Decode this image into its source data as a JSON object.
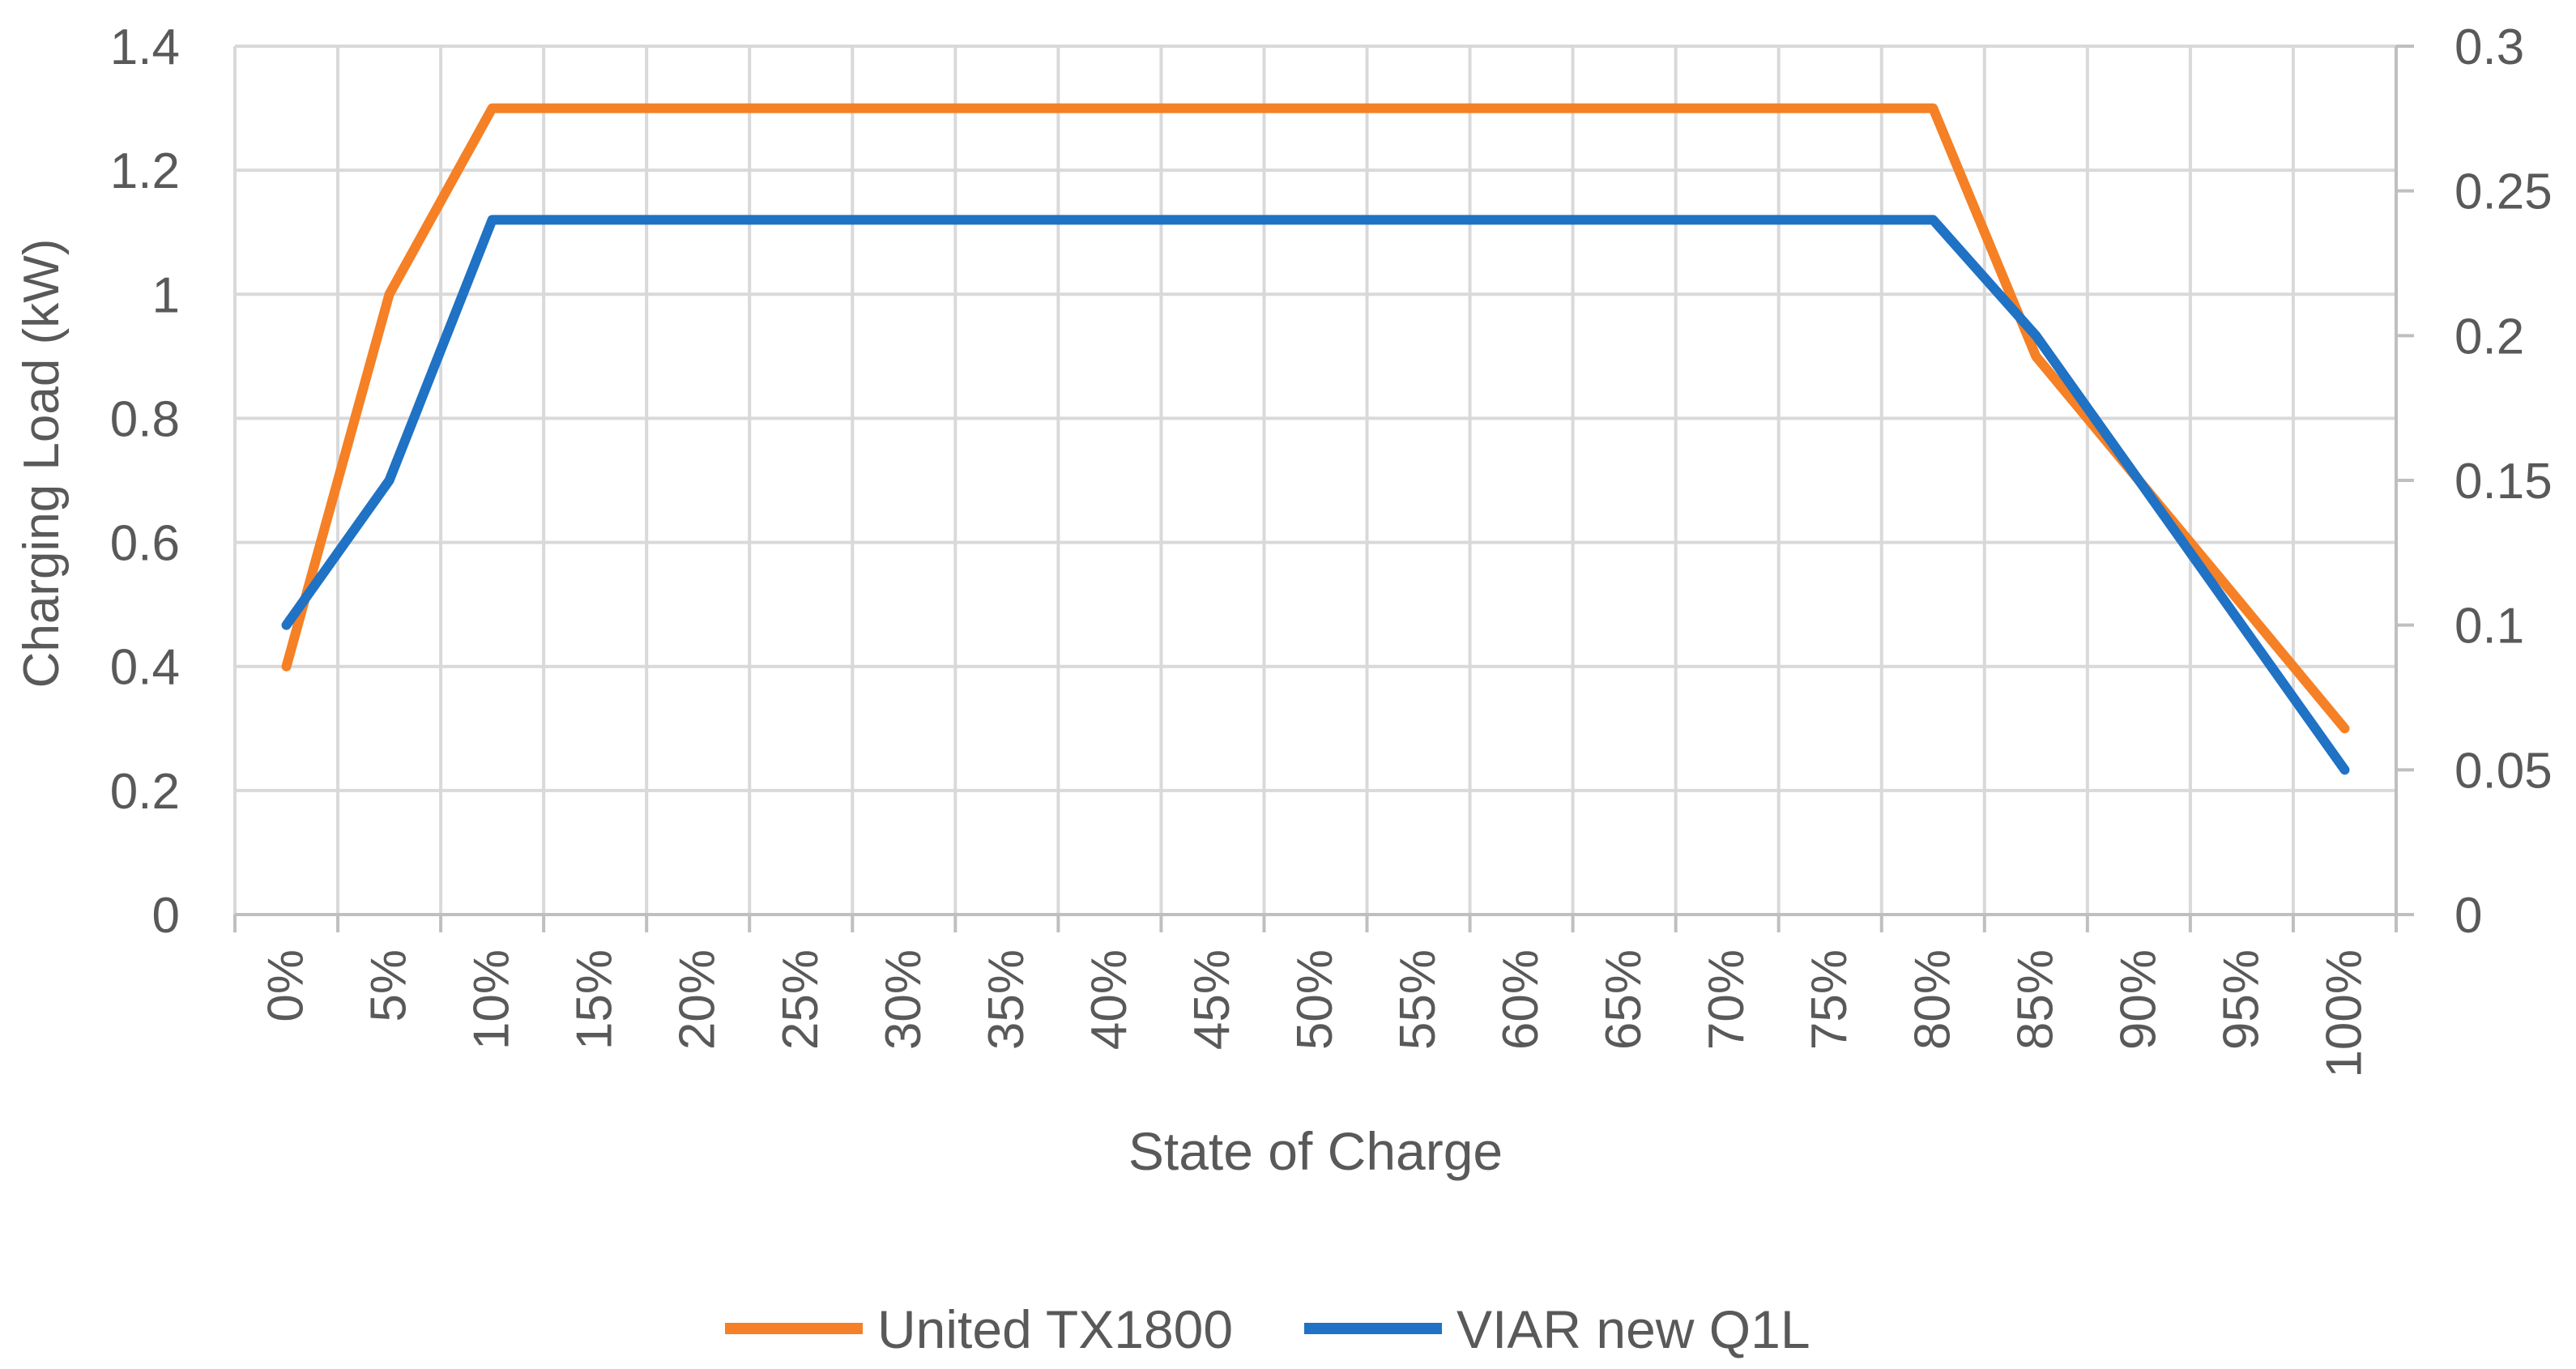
{
  "chart_data": {
    "type": "line",
    "title": "",
    "xlabel": "State of Charge",
    "ylabel": "Charging Load (kW)",
    "y2label": "",
    "categories": [
      "0%",
      "5%",
      "10%",
      "15%",
      "20%",
      "25%",
      "30%",
      "35%",
      "40%",
      "45%",
      "50%",
      "55%",
      "60%",
      "65%",
      "70%",
      "75%",
      "80%",
      "85%",
      "90%",
      "95%",
      "100%"
    ],
    "ylim": [
      0,
      1.4
    ],
    "yticks": [
      "0",
      "0.2",
      "0.4",
      "0.6",
      "0.8",
      "1",
      "1.2",
      "1.4"
    ],
    "y2lim": [
      0,
      0.3
    ],
    "y2ticks": [
      "0",
      "0.05",
      "0.1",
      "0.15",
      "0.2",
      "0.25",
      "0.3"
    ],
    "grid": true,
    "legend_position": "bottom",
    "series": [
      {
        "name": "United TX1800",
        "axis": "left",
        "color": "#F58025",
        "values": [
          0.4,
          1.0,
          1.3,
          1.3,
          1.3,
          1.3,
          1.3,
          1.3,
          1.3,
          1.3,
          1.3,
          1.3,
          1.3,
          1.3,
          1.3,
          1.3,
          1.3,
          0.9,
          0.7,
          0.5,
          0.3
        ]
      },
      {
        "name": "VIAR new Q1L",
        "axis": "right",
        "color": "#1F72C4",
        "values": [
          0.1,
          0.15,
          0.24,
          0.24,
          0.24,
          0.24,
          0.24,
          0.24,
          0.24,
          0.24,
          0.24,
          0.24,
          0.24,
          0.24,
          0.24,
          0.24,
          0.24,
          0.2,
          0.15,
          0.1,
          0.05
        ]
      }
    ]
  }
}
